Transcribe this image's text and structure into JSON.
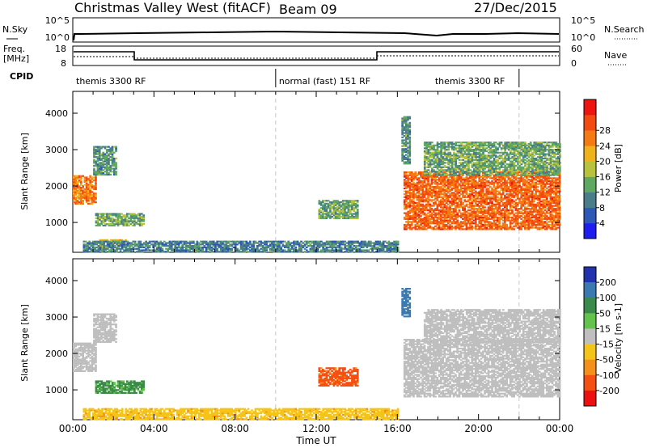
{
  "header": {
    "title": "Christmas Valley West (fitACF)",
    "beam": "Beam 09",
    "date": "27/Dec/2015"
  },
  "top_panels": {
    "nsky_label": "N.Sky",
    "nsky_ticks": [
      "10^5",
      "10^0"
    ],
    "nsearch_label": "N.Search",
    "nsearch_ticks": [
      "10^5",
      "10^0"
    ],
    "freq_label_1": "Freq.",
    "freq_label_2": "[MHz]",
    "freq_ticks": [
      "18",
      "8"
    ],
    "nave_label": "Nave",
    "nave_ticks": [
      "60",
      "0"
    ],
    "cpid_label": "CPID",
    "cpid_segments": [
      {
        "label": "themis 3300 RF",
        "start": 0,
        "end": 10
      },
      {
        "label": "normal (fast) 151 RF",
        "start": 10,
        "end": 22
      },
      {
        "label": "themis 3300 RF",
        "start": 22,
        "end": 24
      }
    ]
  },
  "chart_data": [
    {
      "type": "heatmap",
      "name": "power",
      "ylabel": "Slant Range [km]",
      "xlabel": "Time UT",
      "xlim": [
        0,
        24
      ],
      "ylim": [
        180,
        4600
      ],
      "y_ticks": [
        "1000",
        "2000",
        "3000",
        "4000"
      ],
      "colorbar_label": "Power [dB]",
      "colorbar_ticks": [
        "4",
        "8",
        "12",
        "16",
        "20",
        "24",
        "28"
      ],
      "colorbar_colors": [
        "#1d1df2",
        "#2c59b8",
        "#4a7d8a",
        "#5fa861",
        "#b8c23c",
        "#f0b21a",
        "#f57a14",
        "#f24a10",
        "#ee1510"
      ],
      "regions": [
        {
          "t0": 0.0,
          "t1": 1.1,
          "r0": 1500,
          "r1": 2300,
          "level": 26
        },
        {
          "t0": 1.0,
          "t1": 2.1,
          "r0": 2300,
          "r1": 3100,
          "level": 12
        },
        {
          "t0": 1.1,
          "t1": 3.5,
          "r0": 900,
          "r1": 1250,
          "level": 14
        },
        {
          "t0": 1.3,
          "t1": 2.6,
          "r0": 300,
          "r1": 520,
          "level": 20
        },
        {
          "t0": 0.5,
          "t1": 16.0,
          "r0": 180,
          "r1": 480,
          "level": 10
        },
        {
          "t0": 12.1,
          "t1": 14.0,
          "r0": 1100,
          "r1": 1600,
          "level": 14
        },
        {
          "t0": 16.3,
          "t1": 24.0,
          "r0": 800,
          "r1": 2400,
          "level": 28
        },
        {
          "t0": 17.3,
          "t1": 24.0,
          "r0": 2300,
          "r1": 3200,
          "level": 14
        },
        {
          "t0": 16.2,
          "t1": 16.6,
          "r0": 2600,
          "r1": 3900,
          "level": 12
        }
      ]
    },
    {
      "type": "heatmap",
      "name": "velocity",
      "ylabel": "Slant Range [km]",
      "xlabel": "Time UT",
      "xlim": [
        0,
        24
      ],
      "ylim": [
        180,
        4600
      ],
      "y_ticks": [
        "1000",
        "2000",
        "3000",
        "4000"
      ],
      "x_ticks": [
        "00:00",
        "04:00",
        "08:00",
        "12:00",
        "16:00",
        "20:00",
        "00:00"
      ],
      "colorbar_label": "Velocity [m s-1]",
      "colorbar_ticks": [
        "200",
        "100",
        "50",
        "15",
        "-15",
        "-50",
        "-100",
        "-200"
      ],
      "colorbar_colors": [
        "#2132b0",
        "#3b7ab0",
        "#3c8a4a",
        "#62c44a",
        "#bfbfbf",
        "#f5c418",
        "#f5911a",
        "#f35012",
        "#ee1010"
      ],
      "regions": [
        {
          "t0": 0.0,
          "t1": 1.1,
          "r0": 1500,
          "r1": 2300,
          "level": 0
        },
        {
          "t0": 1.0,
          "t1": 2.1,
          "r0": 2300,
          "r1": 3100,
          "level": 0
        },
        {
          "t0": 1.1,
          "t1": 3.5,
          "r0": 900,
          "r1": 1250,
          "level": 60
        },
        {
          "t0": 0.5,
          "t1": 16.0,
          "r0": 180,
          "r1": 480,
          "level": -40
        },
        {
          "t0": 12.1,
          "t1": 14.0,
          "r0": 1100,
          "r1": 1600,
          "level": -130
        },
        {
          "t0": 16.3,
          "t1": 24.0,
          "r0": 800,
          "r1": 2400,
          "level": 0
        },
        {
          "t0": 17.3,
          "t1": 24.0,
          "r0": 2300,
          "r1": 3200,
          "level": 0
        },
        {
          "t0": 16.2,
          "t1": 16.6,
          "r0": 3000,
          "r1": 3800,
          "level": 150
        }
      ]
    }
  ]
}
